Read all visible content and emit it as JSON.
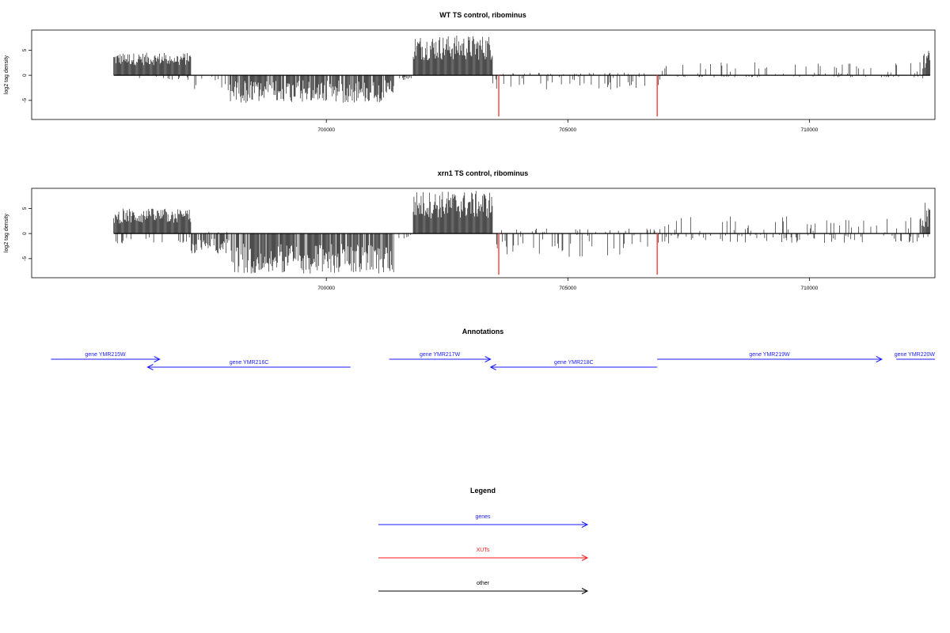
{
  "chart_data": [
    {
      "type": "bar",
      "title": "WT TS control, ribominus",
      "ylabel": "log2 tag density",
      "xlim": [
        693900,
        712600
      ],
      "ylim": [
        -8.8,
        9
      ],
      "yticks": [
        -5,
        0,
        5
      ],
      "xticks": [
        700000,
        705000,
        710000
      ],
      "profile": [
        {
          "from": 695600,
          "to": 697200,
          "plus": [
            2,
            4.5
          ],
          "minus": [
            0,
            1
          ]
        },
        {
          "from": 697200,
          "to": 698000,
          "plus": [
            0,
            0
          ],
          "minus": [
            0,
            3
          ]
        },
        {
          "from": 698000,
          "to": 701400,
          "plus": [
            0,
            0
          ],
          "minus": [
            1,
            5.5
          ]
        },
        {
          "from": 701400,
          "to": 701800,
          "plus": [
            0,
            0
          ],
          "minus": [
            0,
            1
          ]
        },
        {
          "from": 701800,
          "to": 703450,
          "plus": [
            3,
            8
          ],
          "minus": [
            0,
            0
          ]
        },
        {
          "from": 703450,
          "to": 706950,
          "plus": [
            0,
            0.5
          ],
          "minus": [
            0,
            3
          ]
        },
        {
          "from": 706950,
          "to": 712350,
          "plus": [
            0,
            2.7
          ],
          "minus": [
            0,
            0.4
          ]
        },
        {
          "from": 712350,
          "to": 712500,
          "plus": [
            1,
            5
          ],
          "minus": [
            0,
            1
          ]
        }
      ],
      "highlight": [
        {
          "x": 703570,
          "y": -8.2
        },
        {
          "x": 706850,
          "y": -8.2
        }
      ]
    },
    {
      "type": "bar",
      "title": "xrn1 TS control, ribominus",
      "ylabel": "log2 tag density",
      "xlim": [
        693900,
        712600
      ],
      "ylim": [
        -8.8,
        9
      ],
      "yticks": [
        -5,
        0,
        5
      ],
      "xticks": [
        700000,
        705000,
        710000
      ],
      "profile": [
        {
          "from": 695600,
          "to": 697200,
          "plus": [
            2,
            5
          ],
          "minus": [
            0,
            2
          ]
        },
        {
          "from": 697200,
          "to": 698000,
          "plus": [
            0,
            0.3
          ],
          "minus": [
            1,
            4
          ]
        },
        {
          "from": 698000,
          "to": 701400,
          "plus": [
            0,
            0
          ],
          "minus": [
            2,
            8
          ]
        },
        {
          "from": 701400,
          "to": 701800,
          "plus": [
            0,
            0
          ],
          "minus": [
            0,
            1
          ]
        },
        {
          "from": 701800,
          "to": 703450,
          "plus": [
            3,
            8.5
          ],
          "minus": [
            0,
            0
          ]
        },
        {
          "from": 703450,
          "to": 706950,
          "plus": [
            0,
            1
          ],
          "minus": [
            0,
            5
          ]
        },
        {
          "from": 706950,
          "to": 712350,
          "plus": [
            0,
            3.5
          ],
          "minus": [
            0,
            2
          ]
        },
        {
          "from": 712350,
          "to": 712500,
          "plus": [
            1,
            6.5
          ],
          "minus": [
            0,
            1
          ]
        }
      ],
      "highlight": [
        {
          "x": 703570,
          "y": -8.2
        },
        {
          "x": 706850,
          "y": -8.2
        }
      ]
    },
    {
      "type": "annotation-track",
      "title": "Annotations",
      "xlim": [
        693900,
        712600
      ],
      "features": [
        {
          "label": "gene YMR215W",
          "from": 694300,
          "to": 696550,
          "strand": "+",
          "row": 0
        },
        {
          "label": "gene YMR216C",
          "from": 696300,
          "to": 700500,
          "strand": "-",
          "row": 1
        },
        {
          "label": "gene YMR217W",
          "from": 701300,
          "to": 703400,
          "strand": "+",
          "row": 0
        },
        {
          "label": "gene YMR218C",
          "from": 703400,
          "to": 706850,
          "strand": "-",
          "row": 1
        },
        {
          "label": "gene YMR219W",
          "from": 706850,
          "to": 711500,
          "strand": "+",
          "row": 0
        },
        {
          "label": "gene YMR220W",
          "from": 711800,
          "to": 712700,
          "strand": "+",
          "row": 0
        }
      ]
    },
    {
      "type": "legend",
      "title": "Legend",
      "entries": [
        {
          "label": "genes",
          "color": "#1a1aff"
        },
        {
          "label": "XUTs",
          "color": "#ff1a1a"
        },
        {
          "label": "other",
          "color": "#000000"
        }
      ]
    }
  ],
  "colors": {
    "gene": "#1a1aff",
    "xut": "#ff1a1a",
    "other": "#000000",
    "bar": "#000000",
    "highlight": "#ff3b3b"
  }
}
